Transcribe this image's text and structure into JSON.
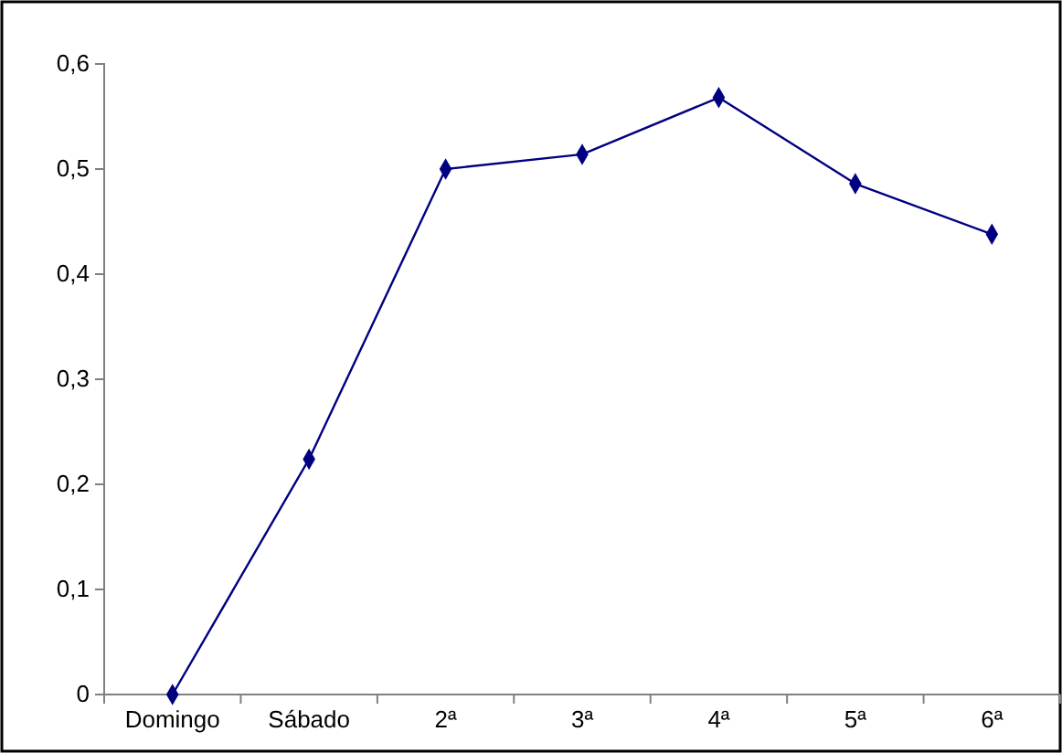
{
  "chart_data": {
    "type": "line",
    "categories": [
      "Domingo",
      "Sábado",
      "2ª",
      "3ª",
      "4ª",
      "5ª",
      "6ª"
    ],
    "series": [
      {
        "color": "#000080",
        "values": [
          0,
          0.224,
          0.5,
          0.514,
          0.568,
          0.486,
          0.438
        ]
      }
    ],
    "ylim": [
      0,
      0.6
    ],
    "yticks": [
      {
        "value": 0,
        "label": "0"
      },
      {
        "value": 0.1,
        "label": "0,1"
      },
      {
        "value": 0.2,
        "label": "0,2"
      },
      {
        "value": 0.3,
        "label": "0,3"
      },
      {
        "value": 0.4,
        "label": "0,4"
      },
      {
        "value": 0.5,
        "label": "0,5"
      },
      {
        "value": 0.6,
        "label": "0,6"
      }
    ],
    "marker": "diamond",
    "line_style": "solid"
  }
}
